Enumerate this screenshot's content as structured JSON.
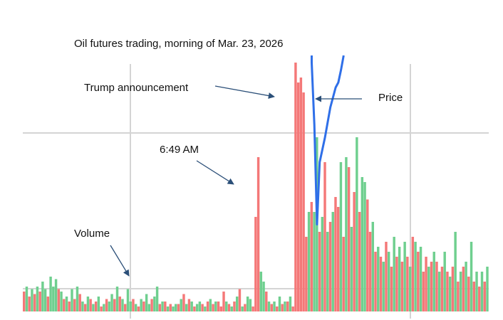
{
  "chart_data": {
    "type": "bar",
    "title": "Oil futures trading, morning of Mar. 23, 2026",
    "xlabel": "",
    "ylabel": "",
    "grid": true,
    "colors": {
      "up": "#6fcf8f",
      "down": "#f47878",
      "price": "#2f6fe8",
      "arrow": "#2b4f78",
      "grid": "#d4d4d4"
    },
    "series": [
      {
        "name": "Volume",
        "type": "bar",
        "values": [
          8,
          10,
          6,
          9,
          7,
          10,
          8,
          12,
          9,
          6,
          14,
          10,
          13,
          9,
          8,
          5,
          6,
          4,
          9,
          5,
          10,
          7,
          4,
          3,
          6,
          5,
          3,
          4,
          6,
          2,
          3,
          5,
          4,
          7,
          5,
          10,
          6,
          5,
          3,
          9,
          4,
          5,
          3,
          2,
          5,
          4,
          7,
          3,
          5,
          6,
          10,
          3,
          4,
          4,
          2,
          3,
          2,
          3,
          3,
          5,
          7,
          3,
          5,
          4,
          2,
          3,
          4,
          3,
          2,
          4,
          5,
          3,
          4,
          4,
          2,
          8,
          4,
          3,
          2,
          4,
          6,
          9,
          2,
          3,
          6,
          5,
          2,
          38,
          62,
          16,
          12,
          8,
          4,
          3,
          4,
          2,
          6,
          3,
          4,
          4,
          6,
          2,
          100,
          92,
          94,
          88,
          30,
          40,
          44,
          40,
          70,
          32,
          38,
          60,
          32,
          36,
          40,
          46,
          42,
          60,
          30,
          62,
          58,
          34,
          48,
          70,
          40,
          54,
          52,
          45,
          32,
          36,
          24,
          26,
          22,
          20,
          28,
          24,
          18,
          30,
          22,
          26,
          20,
          28,
          22,
          18,
          30,
          28,
          24,
          26,
          16,
          22,
          18,
          20,
          24,
          20,
          16,
          18,
          24,
          16,
          14,
          18,
          32,
          12,
          16,
          18,
          20,
          14,
          28,
          12,
          16,
          10,
          16,
          12,
          18
        ],
        "up": [
          0,
          1,
          0,
          1,
          0,
          1,
          0,
          1,
          1,
          0,
          1,
          1,
          1,
          0,
          1,
          0,
          1,
          0,
          1,
          0,
          1,
          0,
          1,
          0,
          1,
          0,
          1,
          0,
          1,
          0,
          1,
          0,
          1,
          1,
          0,
          1,
          0,
          1,
          0,
          1,
          1,
          0,
          1,
          0,
          1,
          0,
          1,
          1,
          0,
          1,
          1,
          0,
          1,
          0,
          1,
          0,
          1,
          1,
          0,
          1,
          0,
          1,
          0,
          1,
          0,
          1,
          1,
          0,
          1,
          0,
          1,
          0,
          1,
          0,
          0,
          0,
          1,
          0,
          1,
          0,
          1,
          0,
          1,
          0,
          1,
          1,
          0,
          0,
          0,
          1,
          1,
          0,
          1,
          0,
          1,
          0,
          1,
          0,
          1,
          0,
          1,
          0,
          0,
          0,
          0,
          0,
          0,
          1,
          0,
          1,
          1,
          0,
          1,
          0,
          1,
          0,
          1,
          0,
          0,
          1,
          0,
          1,
          0,
          1,
          0,
          1,
          0,
          1,
          1,
          0,
          0,
          1,
          0,
          1,
          0,
          1,
          0,
          1,
          0,
          1,
          0,
          1,
          0,
          1,
          0,
          1,
          0,
          1,
          0,
          1,
          0,
          0,
          1,
          0,
          1,
          0,
          1,
          0,
          1,
          0,
          1,
          0,
          1,
          0,
          1,
          0,
          1,
          0,
          1,
          0,
          1,
          0,
          1,
          0,
          1
        ]
      },
      {
        "name": "Price",
        "type": "line",
        "values": [
          null,
          null,
          null,
          null,
          null,
          null,
          null,
          null,
          null,
          null,
          null,
          null,
          null,
          null,
          null,
          null,
          null,
          null,
          null,
          null,
          null,
          null,
          null,
          null,
          null,
          null,
          null,
          null,
          null,
          null,
          null,
          null,
          null,
          null,
          null,
          null,
          null,
          null,
          null,
          null,
          null,
          null,
          null,
          null,
          null,
          null,
          null,
          null,
          null,
          null,
          null,
          null,
          null,
          null,
          null,
          null,
          null,
          null,
          null,
          null,
          null,
          null,
          null,
          null,
          null,
          null,
          null,
          null,
          null,
          null,
          null,
          null,
          null,
          null,
          null,
          null,
          null,
          null,
          null,
          null,
          null,
          null,
          null,
          null,
          null,
          null,
          null,
          null,
          null,
          null,
          null,
          null,
          null,
          null,
          null,
          null,
          null,
          null,
          null,
          null,
          null,
          null,
          null,
          null,
          null,
          null,
          null,
          null,
          100,
          75,
          35,
          60,
          65,
          70,
          76,
          82,
          86,
          90,
          92,
          97
        ]
      }
    ],
    "annotations": [
      {
        "text": "Trump announcement",
        "arrow": true
      },
      {
        "text": "Price",
        "arrow": true
      },
      {
        "text": "6:49 AM",
        "arrow": true
      },
      {
        "text": "Volume",
        "arrow": true
      }
    ]
  }
}
